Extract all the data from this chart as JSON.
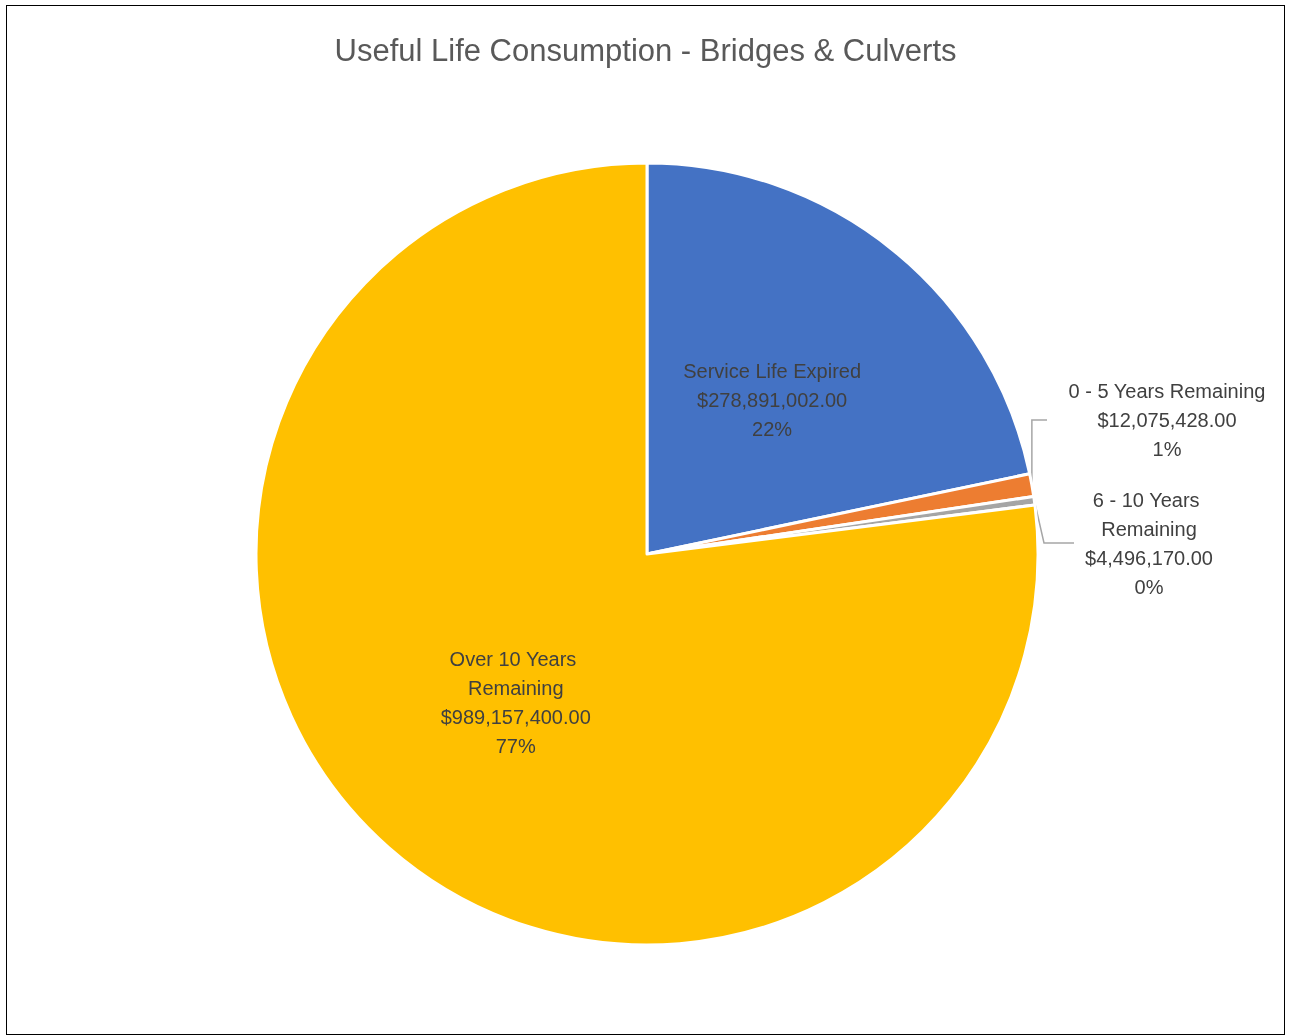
{
  "chart_data": {
    "type": "pie",
    "title": "Useful Life Consumption - Bridges & Culverts",
    "categories": [
      "Service Life Expired",
      "0 - 5 Years Remaining",
      "6 - 10 Years Remaining",
      "Over 10 Years Remaining"
    ],
    "values": [
      278891002.0,
      12075428.0,
      4496170.0,
      989157400.0
    ],
    "colors": [
      "#4472c4",
      "#ed7d31",
      "#a5a5a5",
      "#ffc000"
    ],
    "value_labels": [
      "$278,891,002.00\n22%",
      "$12,075,428.00\n1%",
      "$4,496,170.00\n0%",
      "$989,157,400.00\n77%"
    ]
  }
}
